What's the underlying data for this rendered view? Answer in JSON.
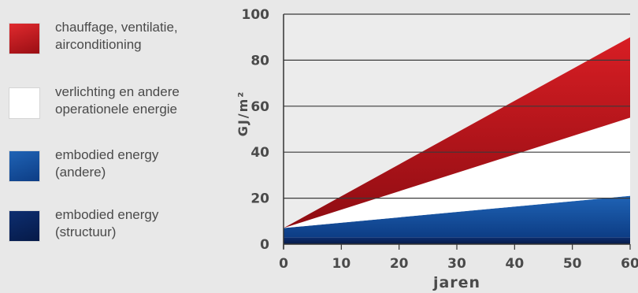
{
  "chart_data": {
    "type": "area",
    "x": [
      0,
      60
    ],
    "xlabel": "jaren",
    "ylabel": "GJ/m²",
    "xlim": [
      0,
      60
    ],
    "ylim": [
      0,
      100
    ],
    "xticks": [
      0,
      10,
      20,
      30,
      40,
      50,
      60
    ],
    "yticks": [
      0,
      20,
      40,
      60,
      80,
      100
    ],
    "grid": "horizontal",
    "legend_position": "left",
    "stacked": true,
    "series": [
      {
        "name": "embodied energy (structuur)",
        "label_lines": [
          "embodied energy",
          "(structuur)"
        ],
        "color": "#0a2a6a",
        "values": [
          3,
          3
        ]
      },
      {
        "name": "embodied energy (andere)",
        "label_lines": [
          "embodied energy",
          "(andere)"
        ],
        "color": "#1a5aa8",
        "values": [
          4,
          18
        ]
      },
      {
        "name": "verlichting en andere operationele energie",
        "label_lines": [
          "verlichting en andere",
          "operationele energie"
        ],
        "color": "#ffffff",
        "values": [
          0,
          34
        ]
      },
      {
        "name": "chauffage, ventilatie, airconditioning",
        "label_lines": [
          "chauffage, ventilatie,",
          "airconditioning"
        ],
        "color": "#c8151c",
        "values": [
          0,
          35
        ]
      }
    ]
  }
}
